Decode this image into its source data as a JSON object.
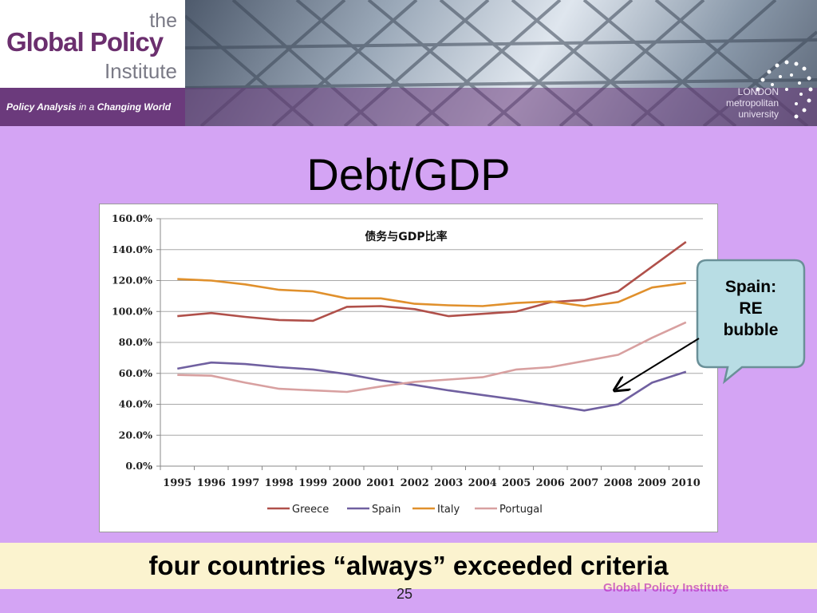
{
  "header": {
    "logo_the": "the",
    "logo_main": "Global Policy",
    "logo_institute": "Institute",
    "tagline_part1": "Policy Analysis",
    "tagline_part2": " in a ",
    "tagline_part3": "Changing World",
    "university_line1": "LONDON",
    "university_line2": "metropolitan",
    "university_line3": "university"
  },
  "slide": {
    "title": "Debt/GDP",
    "callout_lines": [
      "Spain:",
      "RE",
      "bubble"
    ],
    "bottom_text": "four countries “always” exceeded criteria",
    "page_number": "25",
    "footer_brand": "Global Policy Institute"
  },
  "colors": {
    "Greece": "#b0504a",
    "Spain": "#7060a0",
    "Italy": "#e0902c",
    "Portugal": "#d8a0a0",
    "callout_fill": "#b8dde4",
    "callout_border": "#6a9098"
  },
  "chart_data": {
    "type": "line",
    "title": "债务与GDP比率",
    "x": [
      "1995",
      "1996",
      "1997",
      "1998",
      "1999",
      "2000",
      "2001",
      "2002",
      "2003",
      "2004",
      "2005",
      "2006",
      "2007",
      "2008",
      "2009",
      "2010"
    ],
    "ylim": [
      0,
      160
    ],
    "yticks": [
      "0.0%",
      "20.0%",
      "40.0%",
      "60.0%",
      "80.0%",
      "100.0%",
      "120.0%",
      "140.0%",
      "160.0%"
    ],
    "grid": true,
    "legend_position": "bottom",
    "series": [
      {
        "name": "Greece",
        "values": [
          97,
          99,
          96.5,
          94.5,
          94,
          103,
          103.5,
          101.5,
          97,
          98.5,
          100,
          106,
          107.5,
          113,
          129,
          145
        ]
      },
      {
        "name": "Spain",
        "values": [
          63,
          67,
          66,
          64,
          62.5,
          59.5,
          55.5,
          52.5,
          49,
          46,
          43,
          39.5,
          36,
          40,
          54,
          61
        ]
      },
      {
        "name": "Italy",
        "values": [
          121,
          120,
          117.5,
          114,
          113,
          108.5,
          108.5,
          105,
          104,
          103.5,
          105.5,
          106.5,
          103.5,
          106,
          115.5,
          118.5
        ]
      },
      {
        "name": "Portugal",
        "values": [
          59,
          58.5,
          54,
          50,
          49,
          48,
          51.5,
          54.5,
          56,
          57.5,
          62.5,
          64,
          68,
          72,
          83,
          93
        ]
      }
    ]
  }
}
